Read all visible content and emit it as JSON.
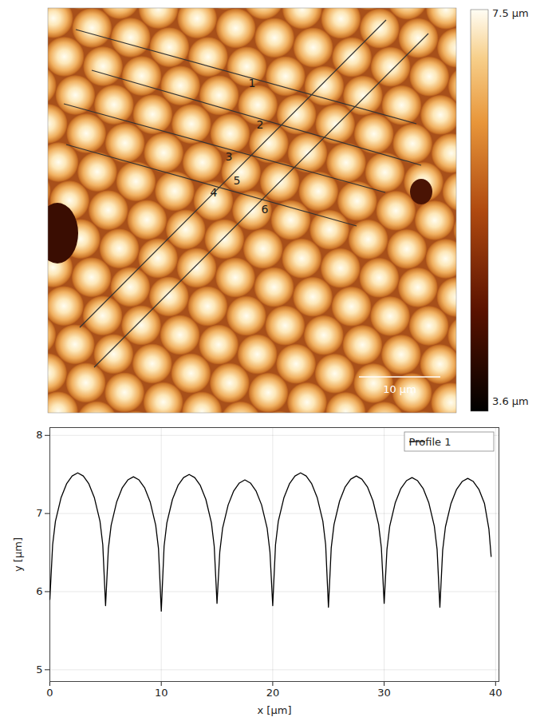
{
  "chart_data": [
    {
      "type": "image",
      "colorbar_range": [
        3.6,
        7.5
      ],
      "colorbar_ticks": [
        {
          "value": 7.5,
          "label": "7.5 µm"
        },
        {
          "value": 3.6,
          "label": "3.6 µm"
        }
      ],
      "scale_bar_label": "10 µm",
      "annotations": [
        "1",
        "2",
        "3",
        "4",
        "5",
        "6"
      ]
    },
    {
      "type": "line",
      "x_label": "x [µm]",
      "y_label": "y [µm]",
      "xlim": [
        0,
        40.3
      ],
      "xticks": [
        0,
        10,
        20,
        30,
        40
      ],
      "ylim": [
        4.85,
        8.1
      ],
      "yticks": [
        5,
        6,
        7,
        8
      ],
      "grid": true,
      "legend": "top-right",
      "series": [
        {
          "name": "Profile 1",
          "color": "#000000",
          "x": [
            0,
            0.25,
            0.5,
            1,
            1.5,
            2,
            2.5,
            3,
            3.5,
            4,
            4.5,
            4.75,
            5,
            5.25,
            5.5,
            6,
            6.5,
            7,
            7.5,
            8,
            8.5,
            9,
            9.5,
            9.75,
            10,
            10.25,
            10.5,
            11,
            11.5,
            12,
            12.5,
            13,
            13.5,
            14,
            14.5,
            14.75,
            15,
            15.25,
            15.5,
            16,
            16.5,
            17,
            17.5,
            18,
            18.5,
            19,
            19.5,
            19.75,
            20,
            20.25,
            20.5,
            21,
            21.5,
            22,
            22.5,
            23,
            23.5,
            24,
            24.5,
            24.75,
            25,
            25.25,
            25.5,
            26,
            26.5,
            27,
            27.5,
            28,
            28.5,
            29,
            29.5,
            29.75,
            30,
            30.25,
            30.5,
            31,
            31.5,
            32,
            32.5,
            33,
            33.5,
            34,
            34.5,
            34.75,
            35,
            35.25,
            35.5,
            36,
            36.5,
            37,
            37.5,
            38,
            38.5,
            39,
            39.4,
            39.6
          ],
          "values": [
            5.9,
            6.6,
            6.9,
            7.2,
            7.38,
            7.48,
            7.52,
            7.48,
            7.38,
            7.2,
            6.9,
            6.6,
            5.82,
            6.55,
            6.85,
            7.15,
            7.33,
            7.43,
            7.47,
            7.43,
            7.33,
            7.15,
            6.85,
            6.55,
            5.75,
            6.58,
            6.88,
            7.18,
            7.36,
            7.46,
            7.5,
            7.46,
            7.36,
            7.18,
            6.88,
            6.58,
            5.85,
            6.51,
            6.81,
            7.11,
            7.29,
            7.39,
            7.43,
            7.39,
            7.29,
            7.11,
            6.81,
            6.51,
            5.82,
            6.6,
            6.9,
            7.2,
            7.38,
            7.48,
            7.52,
            7.48,
            7.38,
            7.2,
            6.9,
            6.6,
            5.8,
            6.56,
            6.86,
            7.16,
            7.34,
            7.44,
            7.48,
            7.44,
            7.34,
            7.16,
            6.86,
            6.56,
            5.85,
            6.54,
            6.84,
            7.14,
            7.32,
            7.42,
            7.46,
            7.42,
            7.32,
            7.14,
            6.84,
            6.54,
            5.8,
            6.53,
            6.83,
            7.13,
            7.31,
            7.41,
            7.45,
            7.41,
            7.31,
            7.13,
            6.8,
            6.45
          ]
        }
      ]
    }
  ]
}
